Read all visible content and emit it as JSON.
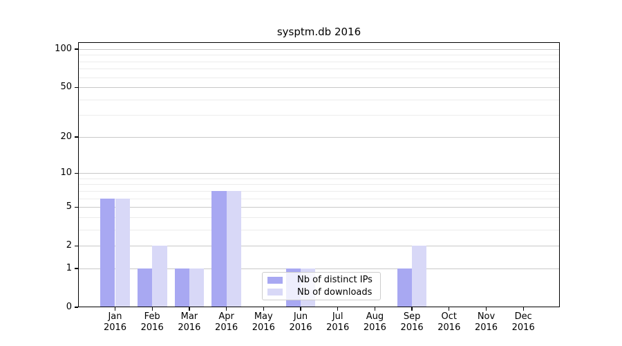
{
  "chart_data": {
    "type": "bar",
    "title": "sysptm.db 2016",
    "categories": [
      "Jan 2016",
      "Feb 2016",
      "Mar 2016",
      "Apr 2016",
      "May 2016",
      "Jun 2016",
      "Jul 2016",
      "Aug 2016",
      "Sep 2016",
      "Oct 2016",
      "Nov 2016",
      "Dec 2016"
    ],
    "series": [
      {
        "name": "Nb of distinct IPs",
        "color": "#a8a8f2",
        "values": [
          6,
          1,
          1,
          7,
          0,
          1,
          0,
          0,
          1,
          0,
          0,
          0
        ]
      },
      {
        "name": "Nb of downloads",
        "color": "#d8d8f7",
        "values": [
          6,
          2,
          1,
          7,
          0,
          1,
          0,
          0,
          2,
          0,
          0,
          0
        ]
      }
    ],
    "yscale": "log1p",
    "yticks": [
      0,
      1,
      2,
      5,
      10,
      20,
      50,
      100
    ],
    "yticks_minor": [
      3,
      4,
      6,
      7,
      8,
      9,
      30,
      40,
      60,
      70,
      80,
      90
    ],
    "ylim": [
      0,
      113
    ],
    "xlabel": "",
    "ylabel": "",
    "grid": true,
    "legend": {
      "position": "lower-center",
      "items": [
        "Nb of distinct IPs",
        "Nb of downloads"
      ]
    }
  }
}
